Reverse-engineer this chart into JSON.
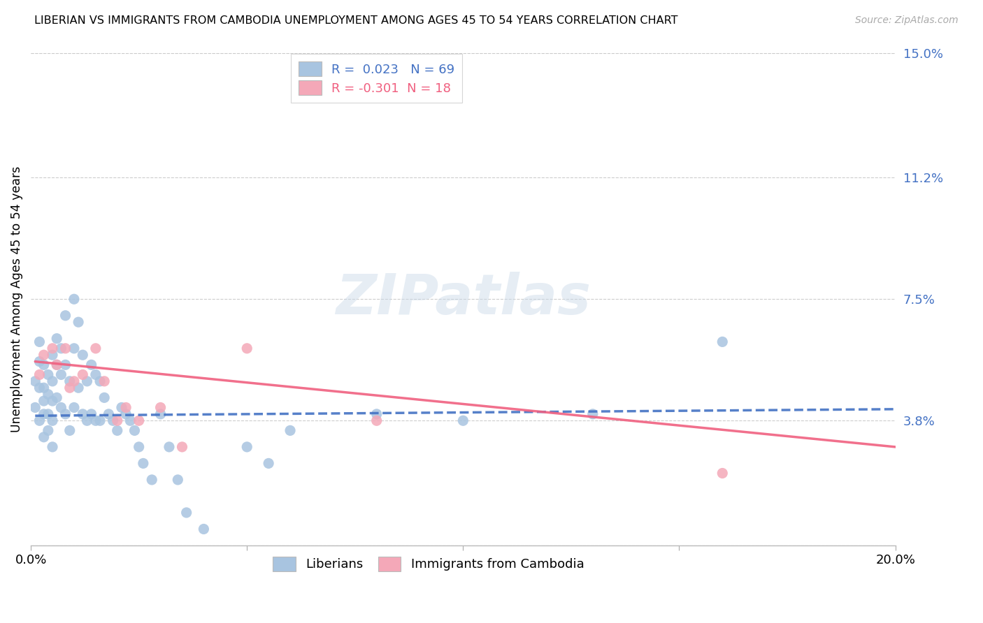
{
  "title": "LIBERIAN VS IMMIGRANTS FROM CAMBODIA UNEMPLOYMENT AMONG AGES 45 TO 54 YEARS CORRELATION CHART",
  "source": "Source: ZipAtlas.com",
  "ylabel": "Unemployment Among Ages 45 to 54 years",
  "xlim": [
    0.0,
    0.2
  ],
  "ylim": [
    0.0,
    0.15
  ],
  "ytick_values": [
    0.0,
    0.038,
    0.075,
    0.112,
    0.15
  ],
  "xtick_values": [
    0.0,
    0.05,
    0.1,
    0.15,
    0.2
  ],
  "liberian_color": "#a8c4e0",
  "cambodia_color": "#f4a8b8",
  "liberian_R": 0.023,
  "liberian_N": 69,
  "cambodia_R": -0.301,
  "cambodia_N": 18,
  "liberian_line_color": "#4472c4",
  "cambodia_line_color": "#f06080",
  "watermark_text": "ZIPatlas",
  "liberian_x": [
    0.001,
    0.001,
    0.002,
    0.002,
    0.002,
    0.002,
    0.003,
    0.003,
    0.003,
    0.003,
    0.003,
    0.004,
    0.004,
    0.004,
    0.004,
    0.005,
    0.005,
    0.005,
    0.005,
    0.005,
    0.006,
    0.006,
    0.006,
    0.007,
    0.007,
    0.007,
    0.008,
    0.008,
    0.008,
    0.009,
    0.009,
    0.01,
    0.01,
    0.01,
    0.011,
    0.011,
    0.012,
    0.012,
    0.013,
    0.013,
    0.014,
    0.014,
    0.015,
    0.015,
    0.016,
    0.016,
    0.017,
    0.018,
    0.019,
    0.02,
    0.021,
    0.022,
    0.023,
    0.024,
    0.025,
    0.026,
    0.028,
    0.03,
    0.032,
    0.034,
    0.036,
    0.04,
    0.05,
    0.055,
    0.06,
    0.08,
    0.1,
    0.13,
    0.16
  ],
  "liberian_y": [
    0.05,
    0.042,
    0.062,
    0.056,
    0.048,
    0.038,
    0.055,
    0.048,
    0.044,
    0.04,
    0.033,
    0.052,
    0.046,
    0.04,
    0.035,
    0.058,
    0.05,
    0.044,
    0.038,
    0.03,
    0.063,
    0.055,
    0.045,
    0.06,
    0.052,
    0.042,
    0.07,
    0.055,
    0.04,
    0.05,
    0.035,
    0.075,
    0.06,
    0.042,
    0.068,
    0.048,
    0.058,
    0.04,
    0.05,
    0.038,
    0.055,
    0.04,
    0.052,
    0.038,
    0.05,
    0.038,
    0.045,
    0.04,
    0.038,
    0.035,
    0.042,
    0.04,
    0.038,
    0.035,
    0.03,
    0.025,
    0.02,
    0.04,
    0.03,
    0.02,
    0.01,
    0.005,
    0.03,
    0.025,
    0.035,
    0.04,
    0.038,
    0.04,
    0.062
  ],
  "cambodia_x": [
    0.002,
    0.003,
    0.005,
    0.006,
    0.008,
    0.009,
    0.01,
    0.012,
    0.015,
    0.017,
    0.02,
    0.022,
    0.025,
    0.03,
    0.035,
    0.05,
    0.08,
    0.16
  ],
  "cambodia_y": [
    0.052,
    0.058,
    0.06,
    0.055,
    0.06,
    0.048,
    0.05,
    0.052,
    0.06,
    0.05,
    0.038,
    0.042,
    0.038,
    0.042,
    0.03,
    0.06,
    0.038,
    0.022
  ],
  "lib_trend_x": [
    0.001,
    0.2
  ],
  "lib_trend_y": [
    0.0395,
    0.0415
  ],
  "cam_trend_x": [
    0.001,
    0.2
  ],
  "cam_trend_y": [
    0.056,
    0.03
  ]
}
